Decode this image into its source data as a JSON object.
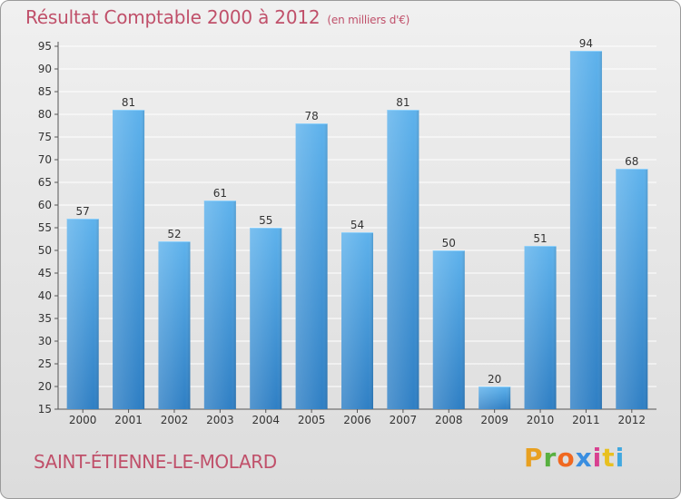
{
  "header": {
    "title": "Résultat Comptable 2000 à 2012",
    "unit": "(en milliers d'€)"
  },
  "footer": {
    "city": "SAINT-ÉTIENNE-LE-MOLARD",
    "logo": "Proxiti"
  },
  "colors": {
    "accent": "#c0506a",
    "bar_light": "#5eb2ec",
    "bar_dark": "#2f7fc4",
    "grid": "#ffffff"
  },
  "chart_data": {
    "type": "bar",
    "title": "Résultat Comptable 2000 à 2012 (en milliers d'€)",
    "xlabel": "",
    "ylabel": "",
    "categories": [
      "2000",
      "2001",
      "2002",
      "2003",
      "2004",
      "2005",
      "2006",
      "2007",
      "2008",
      "2009",
      "2010",
      "2011",
      "2012"
    ],
    "values": [
      57,
      81,
      52,
      61,
      55,
      78,
      54,
      81,
      50,
      20,
      51,
      94,
      68
    ],
    "ylim": [
      15,
      95
    ],
    "yticks": [
      15,
      20,
      25,
      30,
      35,
      40,
      45,
      50,
      55,
      60,
      65,
      70,
      75,
      80,
      85,
      90,
      95
    ],
    "grid": true,
    "legend": "none"
  }
}
